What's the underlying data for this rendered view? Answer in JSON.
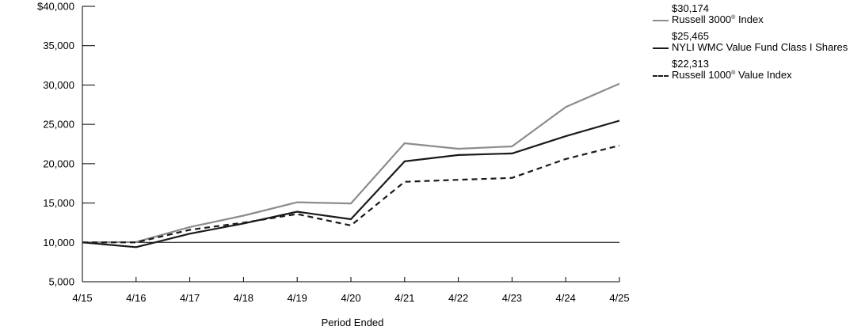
{
  "chart_data": {
    "type": "line",
    "xlabel": "Period Ended",
    "ylabel": "",
    "x": [
      "4/15",
      "4/16",
      "4/17",
      "4/18",
      "4/19",
      "4/20",
      "4/21",
      "4/22",
      "4/23",
      "4/24",
      "4/25"
    ],
    "ylim": [
      5000,
      40000
    ],
    "yticks": [
      5000,
      10000,
      15000,
      20000,
      25000,
      30000,
      35000,
      40000
    ],
    "ytick_labels": [
      "5,000",
      "10,000",
      "15,000",
      "20,000",
      "25,000",
      "30,000",
      "35,000",
      "$40,000"
    ],
    "reference_line": 10000,
    "legend_position": "right",
    "series": [
      {
        "name": "Russell 3000® Index",
        "name_main": "Russell 3000",
        "name_sup": "®",
        "name_tail": " Index",
        "end_value_label": "$30,174",
        "color": "#8c8c8c",
        "style": "solid",
        "values": [
          10000,
          10050,
          11950,
          13400,
          15100,
          14950,
          22600,
          21900,
          22200,
          27200,
          30174
        ]
      },
      {
        "name": "NYLI WMC Value Fund Class I Shares",
        "name_main": "NYLI WMC Value Fund Class I Shares",
        "name_sup": "",
        "name_tail": "",
        "end_value_label": "$25,465",
        "color": "#1a1a1a",
        "style": "solid",
        "values": [
          10000,
          9400,
          11100,
          12400,
          13900,
          12950,
          20300,
          21100,
          21300,
          23500,
          25465
        ]
      },
      {
        "name": "Russell 1000® Value Index",
        "name_main": "Russell 1000",
        "name_sup": "®",
        "name_tail": " Value Index",
        "end_value_label": "$22,313",
        "color": "#1a1a1a",
        "style": "dashed",
        "values": [
          10000,
          10000,
          11600,
          12500,
          13600,
          12150,
          17700,
          17950,
          18200,
          20600,
          22313
        ]
      }
    ]
  }
}
